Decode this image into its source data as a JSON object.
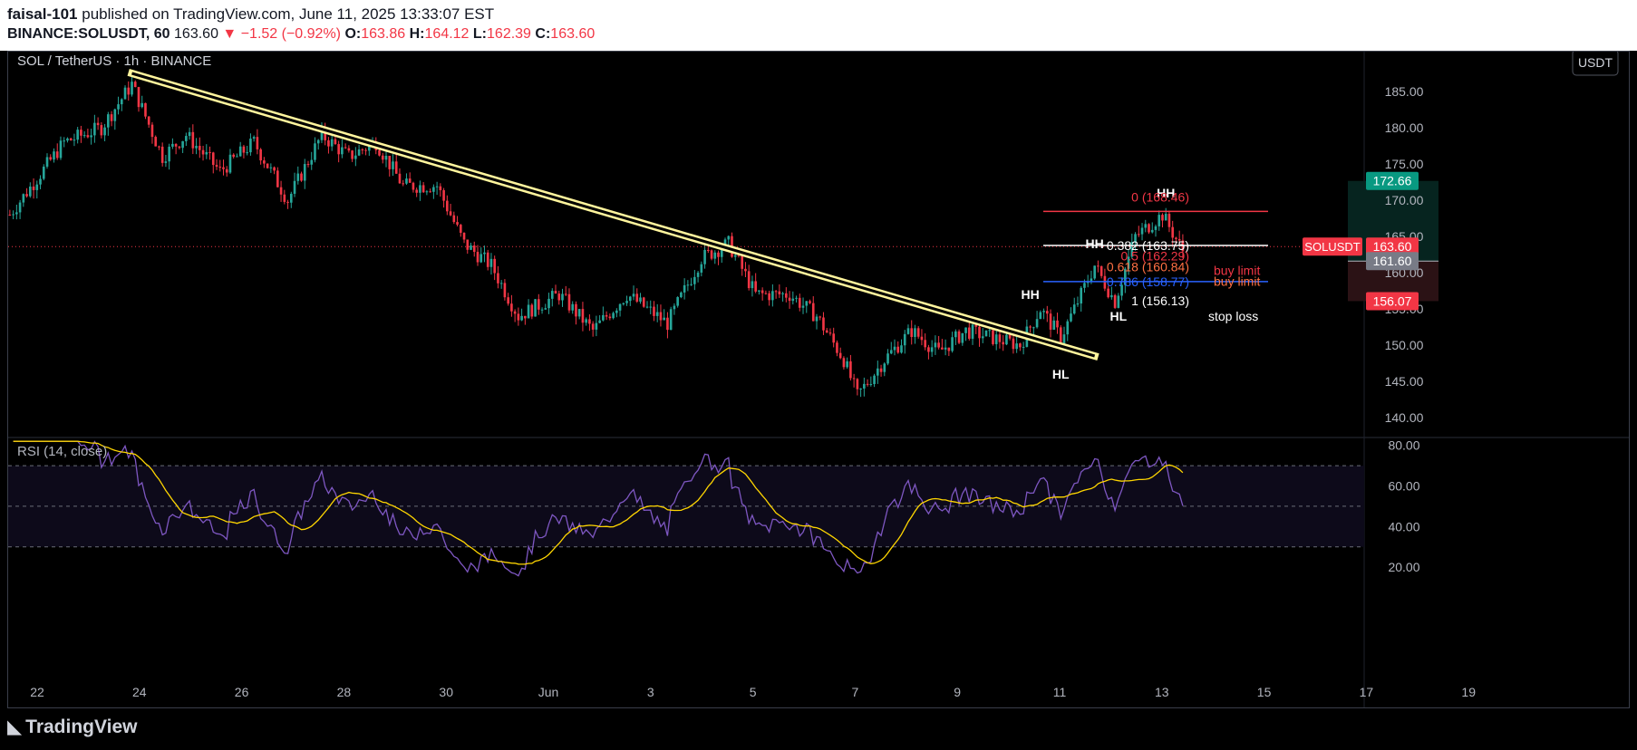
{
  "header": {
    "author": "faisal-101",
    "published_text": "published on TradingView.com, June 11, 2025 13:33:07 EST",
    "symbol": "BINANCE:SOLUSDT, 60",
    "last": "163.60",
    "change": "▼ −1.52 (−0.92%)",
    "o_label": "O:",
    "o": "163.86",
    "h_label": "H:",
    "h": "164.12",
    "l_label": "L:",
    "l": "162.39",
    "c_label": "C:",
    "c": "163.60"
  },
  "chart": {
    "title": "SOL / TetherUS · 1h · BINANCE",
    "currency_button": "USDT",
    "rsi_label": "RSI (14, close)",
    "logo": "TradingView"
  },
  "colors": {
    "up": "#26a69a",
    "down": "#f23645",
    "trendline": "#fff59d",
    "rsi": "#7e57c2",
    "rsi_ma": "#ffd600",
    "background": "#000000"
  },
  "chart_data": {
    "type": "candlestick",
    "symbol": "SOLUSDT",
    "timeframe": "1h",
    "price_axis": {
      "ticks": [
        140,
        145,
        150,
        155,
        160,
        165,
        170,
        175,
        180,
        185
      ],
      "tick_labels": [
        "140.00",
        "145.00",
        "150.00",
        "155.00",
        "160.00",
        "165.00",
        "170.00",
        "175.00",
        "180.00",
        "185.00"
      ],
      "range": [
        137.5,
        190.5
      ]
    },
    "time_axis": {
      "labels": [
        "22",
        "24",
        "26",
        "28",
        "30",
        "Jun",
        "3",
        "5",
        "7",
        "9",
        "11",
        "13",
        "15",
        "17",
        "19"
      ]
    },
    "price_path": [
      {
        "x": 0,
        "y": 168
      },
      {
        "x": 16,
        "y": 178
      },
      {
        "x": 27,
        "y": 180
      },
      {
        "x": 36,
        "y": 186
      },
      {
        "x": 45,
        "y": 176
      },
      {
        "x": 52,
        "y": 179
      },
      {
        "x": 62,
        "y": 174
      },
      {
        "x": 72,
        "y": 178
      },
      {
        "x": 82,
        "y": 170
      },
      {
        "x": 92,
        "y": 179
      },
      {
        "x": 100,
        "y": 176
      },
      {
        "x": 108,
        "y": 178
      },
      {
        "x": 116,
        "y": 172
      },
      {
        "x": 126,
        "y": 172
      },
      {
        "x": 134,
        "y": 164
      },
      {
        "x": 142,
        "y": 161
      },
      {
        "x": 150,
        "y": 154
      },
      {
        "x": 162,
        "y": 157
      },
      {
        "x": 172,
        "y": 152
      },
      {
        "x": 182,
        "y": 157
      },
      {
        "x": 194,
        "y": 153
      },
      {
        "x": 204,
        "y": 162
      },
      {
        "x": 212,
        "y": 164
      },
      {
        "x": 220,
        "y": 157
      },
      {
        "x": 230,
        "y": 157
      },
      {
        "x": 238,
        "y": 154
      },
      {
        "x": 246,
        "y": 148
      },
      {
        "x": 250,
        "y": 143
      },
      {
        "x": 258,
        "y": 148
      },
      {
        "x": 266,
        "y": 152
      },
      {
        "x": 274,
        "y": 149
      },
      {
        "x": 282,
        "y": 152
      },
      {
        "x": 290,
        "y": 151
      },
      {
        "x": 298,
        "y": 150
      },
      {
        "x": 304,
        "y": 155
      },
      {
        "x": 310,
        "y": 151
      },
      {
        "x": 316,
        "y": 157
      },
      {
        "x": 320,
        "y": 161
      },
      {
        "x": 326,
        "y": 156
      },
      {
        "x": 332,
        "y": 165
      },
      {
        "x": 340,
        "y": 168
      },
      {
        "x": 346,
        "y": 163
      }
    ],
    "rsi": {
      "period": 14,
      "axis_ticks": [
        20,
        40,
        60,
        80
      ],
      "tick_labels": [
        "20.00",
        "40.00",
        "60.00",
        "80.00"
      ],
      "upper_band": 70,
      "middle_band": 50,
      "lower_band": 30
    },
    "trendline": {
      "from": {
        "x": 36,
        "y": 187.5
      },
      "to": {
        "x": 320,
        "y": 148.5
      }
    },
    "swing_labels": [
      {
        "text": "HH",
        "x": 301,
        "y": 157
      },
      {
        "text": "HL",
        "x": 310,
        "y": 146
      },
      {
        "text": "HH",
        "x": 320,
        "y": 164
      },
      {
        "text": "HL",
        "x": 327,
        "y": 154
      },
      {
        "text": "HH",
        "x": 341,
        "y": 171
      }
    ],
    "fibonacci": [
      {
        "ratio": "0",
        "price": "168.46",
        "label": "0 (168.46)",
        "color": "#f23645"
      },
      {
        "ratio": "0.382",
        "price": "163.75",
        "label": "0.382 (163.75)",
        "color": "#ffffff"
      },
      {
        "ratio": "0.5",
        "price": "162.29",
        "label": "0.5 (162.29)",
        "color": "#f23645"
      },
      {
        "ratio": "0.618",
        "price": "160.84",
        "label": "0.618 (160.84)",
        "color": "#ff7043"
      },
      {
        "ratio": "0.786",
        "price": "158.77",
        "label": "0.786 (158.77)",
        "color": "#2962ff"
      },
      {
        "ratio": "1",
        "price": "156.13",
        "label": "1 (156.13)",
        "color": "#ffffff"
      }
    ],
    "fib_notes": [
      "buy limit",
      "buy limit",
      "stop loss"
    ],
    "position": {
      "target": 172.66,
      "entry": 161.6,
      "stop": 156.07
    },
    "price_badges": [
      {
        "text": "172.66",
        "price": 172.66,
        "color": "#089981"
      },
      {
        "text": "163.60",
        "price": 163.6,
        "color": "#f23645",
        "tag": "SOLUSDT"
      },
      {
        "text": "161.60",
        "price": 161.6,
        "color": "#787b86"
      },
      {
        "text": "156.07",
        "price": 156.07,
        "color": "#f23645"
      }
    ],
    "current_price": 163.6
  }
}
